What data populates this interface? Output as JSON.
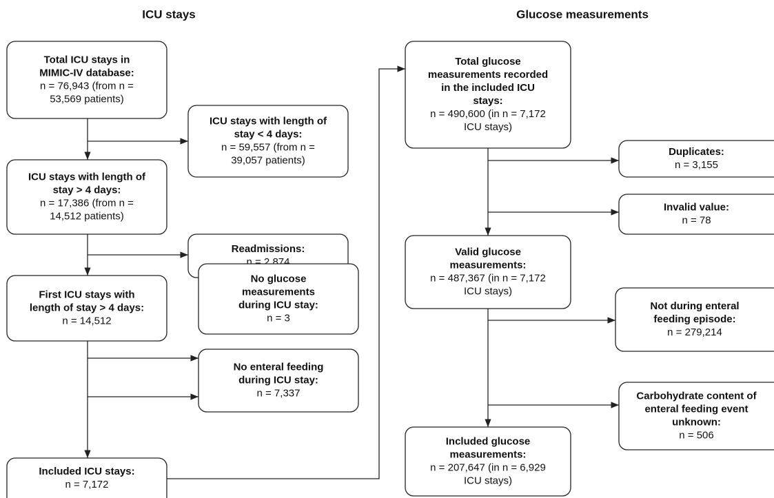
{
  "headers": [
    "ICU stays",
    "Glucose measurements"
  ],
  "nodes": [
    {
      "title": [
        "Total ICU stays in",
        "MIMIC-IV database:"
      ],
      "body": [
        "n = 76,943 (from n =",
        "53,569 patients)"
      ]
    },
    {
      "title": [
        "ICU stays with length of",
        "stay < 4 days:"
      ],
      "body": [
        "n = 59,557 (from n =",
        "39,057 patients)"
      ]
    },
    {
      "title": [
        "ICU stays with length of",
        "stay > 4 days:"
      ],
      "body": [
        "n = 17,386 (from n =",
        "14,512 patients)"
      ]
    },
    {
      "title": [
        "Readmissions:"
      ],
      "body": [
        "n = 2,874"
      ]
    },
    {
      "title": [
        "First ICU stays with",
        "length of stay > 4 days:"
      ],
      "body": [
        "n = 14,512"
      ]
    },
    {
      "title": [
        "No glucose",
        "measurements",
        "during ICU stay:"
      ],
      "body": [
        "n = 3"
      ]
    },
    {
      "title": [
        "No enteral feeding",
        "during ICU stay:"
      ],
      "body": [
        "n = 7,337"
      ]
    },
    {
      "title": [
        "Included ICU stays:"
      ],
      "body": [
        "n = 7,172"
      ]
    },
    {
      "title": [
        "Total glucose",
        "measurements recorded",
        "in the included ICU",
        "stays:"
      ],
      "body": [
        "n = 490,600 (in n = 7,172",
        "ICU stays)"
      ]
    },
    {
      "title": [
        "Duplicates:"
      ],
      "body": [
        "n  = 3,155"
      ]
    },
    {
      "title": [
        "Invalid value:"
      ],
      "body": [
        "n = 78"
      ]
    },
    {
      "title": [
        "Valid glucose",
        "measurements:"
      ],
      "body": [
        "n = 487,367 (in n = 7,172",
        "ICU stays)"
      ]
    },
    {
      "title": [
        "Not during enteral",
        "feeding episode:"
      ],
      "body": [
        "n = 279,214"
      ]
    },
    {
      "title": [
        "Carbohydrate content of",
        "enteral feeding event",
        "unknown:"
      ],
      "body": [
        "n = 506"
      ]
    },
    {
      "title": [
        "Included glucose",
        "measurements:"
      ],
      "body": [
        "n = 207,647 (in n = 6,929",
        "ICU stays)"
      ]
    }
  ]
}
